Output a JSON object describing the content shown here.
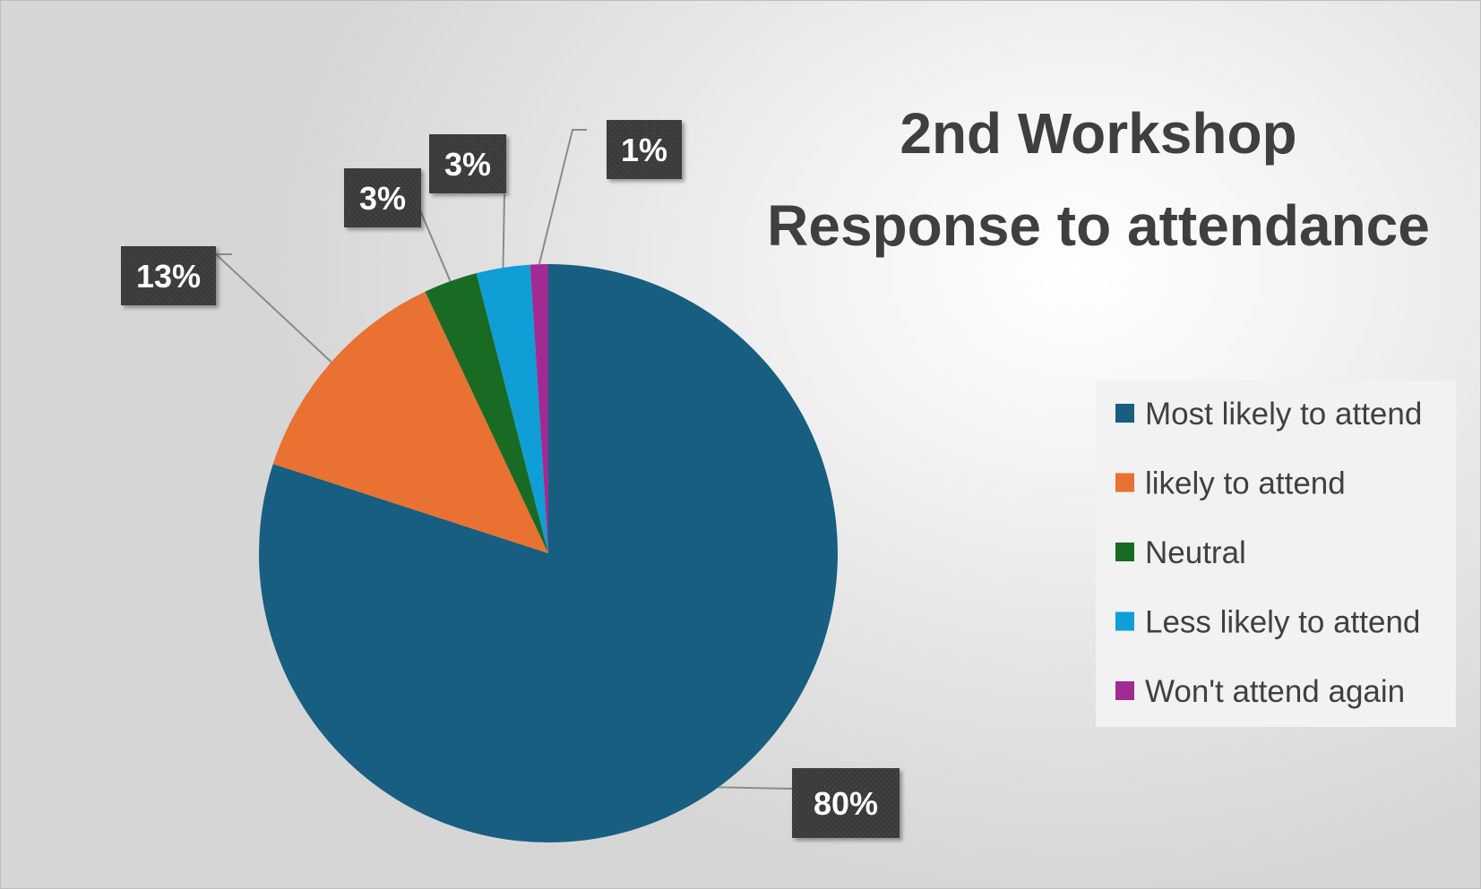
{
  "chart_data": {
    "type": "pie",
    "title": "2nd Workshop Response to attendance",
    "title_lines": [
      "2nd Workshop",
      "Response to attendance"
    ],
    "categories": [
      "Most likely to attend",
      "likely to attend",
      "Neutral",
      "Less likely to attend",
      "Won't attend again"
    ],
    "values": [
      80,
      13,
      3,
      3,
      1
    ],
    "data_labels": [
      "80%",
      "13%",
      "3%",
      "3%",
      "1%"
    ],
    "colors": [
      "#175e81",
      "#e97132",
      "#196b24",
      "#0f9ed5",
      "#a02b93"
    ],
    "legend_position": "right"
  }
}
